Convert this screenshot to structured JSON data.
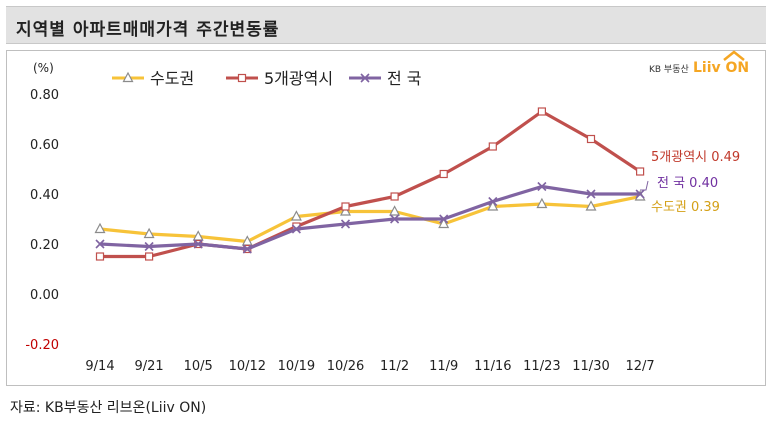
{
  "page_title": "지역별 아파트매매가격 주간변동률",
  "source": "자료: KB부동산 리브온(Liiv ON)",
  "logo": {
    "text": "KB 부동산",
    "brand": "Liiv ON",
    "brand_color": "#f5a623"
  },
  "chart_data": {
    "type": "line",
    "ylabel": "(%)",
    "ylim": [
      -0.2,
      0.8
    ],
    "yticks": [
      -0.2,
      0.0,
      0.2,
      0.4,
      0.6,
      0.8
    ],
    "ytick_labels": [
      "-0.20",
      "0.00",
      "0.20",
      "0.40",
      "0.60",
      "0.80"
    ],
    "categories": [
      "9/14",
      "9/21",
      "10/5",
      "10/12",
      "10/19",
      "10/26",
      "11/2",
      "11/9",
      "11/16",
      "11/23",
      "11/30",
      "12/7"
    ],
    "series": [
      {
        "name": "수도권",
        "color": "#f7c339",
        "marker": "triangle",
        "marker_color": "#8b8b8b",
        "values": [
          0.26,
          0.24,
          0.23,
          0.21,
          0.31,
          0.33,
          0.33,
          0.28,
          0.35,
          0.36,
          0.35,
          0.39
        ],
        "end_label": "수도권 0.39",
        "end_label_color": "#d4a017"
      },
      {
        "name": "5개광역시",
        "color": "#c0504d",
        "marker": "square",
        "marker_color": "#c0504d",
        "values": [
          0.15,
          0.15,
          0.2,
          0.18,
          0.27,
          0.35,
          0.39,
          0.48,
          0.59,
          0.73,
          0.62,
          0.49
        ],
        "end_label": "5개광역시 0.49",
        "end_label_color": "#c0392b"
      },
      {
        "name": "전 국",
        "color": "#8064a2",
        "marker": "x",
        "marker_color": "#8064a2",
        "values": [
          0.2,
          0.19,
          0.2,
          0.18,
          0.26,
          0.28,
          0.3,
          0.3,
          0.37,
          0.43,
          0.4,
          0.4
        ],
        "end_label": "전 국 0.40",
        "end_label_color": "#7030a0"
      }
    ],
    "negative_tick_color": "#c00000"
  }
}
